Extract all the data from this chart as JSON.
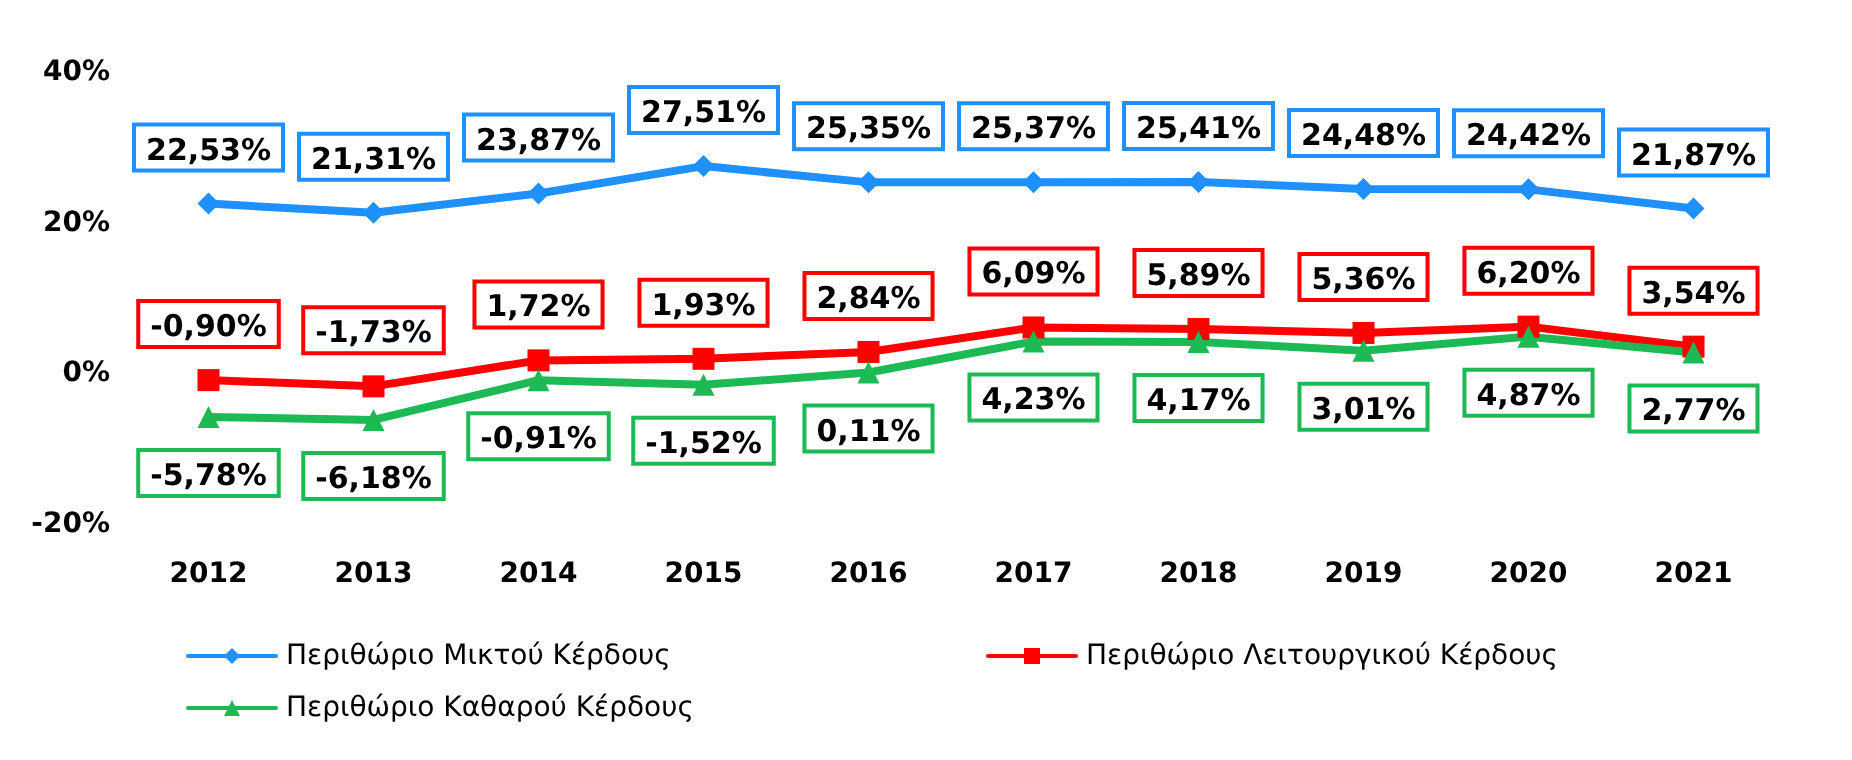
{
  "chart_data": {
    "type": "line",
    "categories": [
      "2012",
      "2013",
      "2014",
      "2015",
      "2016",
      "2017",
      "2018",
      "2019",
      "2020",
      "2021"
    ],
    "ylim": [
      -20,
      40
    ],
    "yticks": [
      {
        "value": -20,
        "label": "-20%"
      },
      {
        "value": 0,
        "label": "0%"
      },
      {
        "value": 20,
        "label": "20%"
      },
      {
        "value": 40,
        "label": "40%"
      }
    ],
    "legend": "bottom",
    "grid": false,
    "series": [
      {
        "name": "Περιθώριο Μικτού Κέρδους",
        "color": "#1e90ff",
        "marker": "diamond",
        "values": [
          22.53,
          21.31,
          23.87,
          27.51,
          25.35,
          25.37,
          25.41,
          24.48,
          24.42,
          21.87
        ],
        "value_labels": [
          "22,53%",
          "21,31%",
          "23,87%",
          "27,51%",
          "25,35%",
          "25,37%",
          "25,41%",
          "24,48%",
          "24,42%",
          "21,87%"
        ]
      },
      {
        "name": "Περιθώριο Λειτουργικού Κέρδους",
        "color": "#ff0000",
        "marker": "square",
        "values": [
          -0.9,
          -1.73,
          1.72,
          1.93,
          2.84,
          6.09,
          5.89,
          5.36,
          6.2,
          3.54
        ],
        "value_labels": [
          "-0,90%",
          "-1,73%",
          "1,72%",
          "1,93%",
          "2,84%",
          "6,09%",
          "5,89%",
          "5,36%",
          "6,20%",
          "3,54%"
        ]
      },
      {
        "name": "Περιθώριο Καθαρού Κέρδους",
        "color": "#1db954",
        "marker": "triangle",
        "values": [
          -5.78,
          -6.18,
          -0.91,
          -1.52,
          0.11,
          4.23,
          4.17,
          3.01,
          4.87,
          2.77
        ],
        "value_labels": [
          "-5,78%",
          "-6,18%",
          "-0,91%",
          "-1,52%",
          "0,11%",
          "4,23%",
          "4,17%",
          "3,01%",
          "4,87%",
          "2,77%"
        ]
      }
    ]
  }
}
